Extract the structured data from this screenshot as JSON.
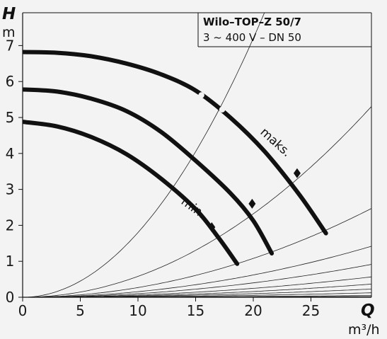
{
  "chart_data": {
    "type": "line",
    "title": "Wilo–TOP–Z 50/7",
    "subtitle": "3 ~ 400 V – DN 50",
    "xlabel": "Q",
    "xunit": "m³/h",
    "ylabel": "H",
    "yunit": "m",
    "xlim": [
      0,
      30
    ],
    "ylim": [
      0,
      8
    ],
    "xticks": [
      "0",
      "5",
      "10",
      "15",
      "20",
      "25"
    ],
    "yticks": [
      "0",
      "1",
      "2",
      "3",
      "4",
      "5",
      "6",
      "7"
    ],
    "grid": false,
    "series": [
      {
        "label": "maks.",
        "x": [
          0,
          3,
          6,
          9,
          12,
          15,
          18,
          21,
          24,
          26.3
        ],
        "y": [
          6.82,
          6.8,
          6.7,
          6.5,
          6.2,
          5.75,
          5.0,
          4.05,
          2.85,
          1.78
        ]
      },
      {
        "x": [
          0,
          3,
          6,
          9,
          12,
          15,
          18,
          20,
          21.6
        ],
        "y": [
          5.78,
          5.72,
          5.52,
          5.18,
          4.6,
          3.8,
          2.9,
          2.13,
          1.22
        ]
      },
      {
        "label": "min.",
        "x": [
          0,
          3,
          6,
          9,
          12,
          15,
          17,
          18.6
        ],
        "y": [
          4.88,
          4.75,
          4.45,
          3.98,
          3.3,
          2.45,
          1.65,
          0.93
        ]
      }
    ],
    "system_curves_k": [
      0.018,
      0.0058,
      0.0027,
      0.00155,
      0.001,
      0.00062,
      0.0004,
      0.00025,
      0.000135,
      5.5e-05,
      2.2e-05
    ]
  }
}
